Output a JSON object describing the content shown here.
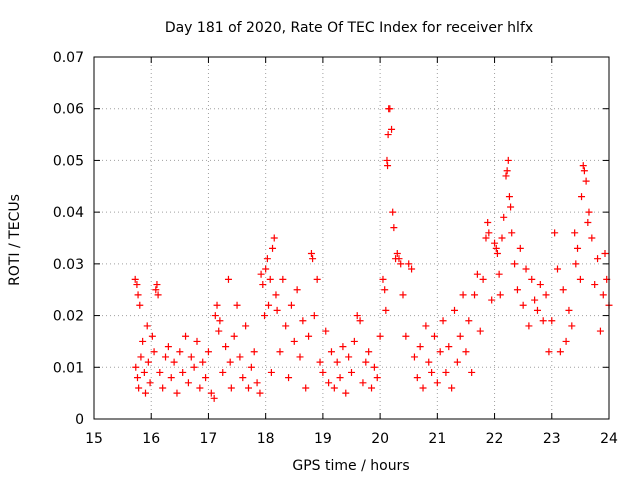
{
  "chart_data": {
    "type": "scatter",
    "title": "Day 181 of 2020, Rate Of TEC Index for receiver hlfx",
    "xlabel": "GPS time / hours",
    "ylabel": "ROTI / TECUs",
    "xlim": [
      15,
      24
    ],
    "ylim": [
      0,
      0.07
    ],
    "xticks": [
      15,
      16,
      17,
      18,
      19,
      20,
      21,
      22,
      23,
      24
    ],
    "yticks": [
      0,
      0.01,
      0.02,
      0.03,
      0.04,
      0.05,
      0.06,
      0.07
    ],
    "ytick_labels": [
      "0",
      "0.01",
      "0.02",
      "0.03",
      "0.04",
      "0.05",
      "0.06",
      "0.07"
    ],
    "grid": true,
    "marker": "+",
    "color": "#ff0000",
    "series": [
      {
        "name": "ROTI",
        "points": [
          [
            15.72,
            0.027
          ],
          [
            15.75,
            0.026
          ],
          [
            15.77,
            0.024
          ],
          [
            15.8,
            0.022
          ],
          [
            15.73,
            0.01
          ],
          [
            15.76,
            0.008
          ],
          [
            15.78,
            0.006
          ],
          [
            15.82,
            0.012
          ],
          [
            15.85,
            0.015
          ],
          [
            15.88,
            0.009
          ],
          [
            15.9,
            0.005
          ],
          [
            15.93,
            0.018
          ],
          [
            15.95,
            0.011
          ],
          [
            15.98,
            0.007
          ],
          [
            16.02,
            0.016
          ],
          [
            16.05,
            0.013
          ],
          [
            16.08,
            0.025
          ],
          [
            16.1,
            0.026
          ],
          [
            16.12,
            0.024
          ],
          [
            16.15,
            0.009
          ],
          [
            16.2,
            0.006
          ],
          [
            16.25,
            0.012
          ],
          [
            16.3,
            0.014
          ],
          [
            16.35,
            0.008
          ],
          [
            16.4,
            0.011
          ],
          [
            16.45,
            0.005
          ],
          [
            16.5,
            0.013
          ],
          [
            16.55,
            0.009
          ],
          [
            16.6,
            0.016
          ],
          [
            16.65,
            0.007
          ],
          [
            16.7,
            0.012
          ],
          [
            16.75,
            0.01
          ],
          [
            16.8,
            0.015
          ],
          [
            16.85,
            0.006
          ],
          [
            16.9,
            0.011
          ],
          [
            16.95,
            0.008
          ],
          [
            17.0,
            0.013
          ],
          [
            17.05,
            0.005
          ],
          [
            17.1,
            0.004
          ],
          [
            17.12,
            0.02
          ],
          [
            17.15,
            0.022
          ],
          [
            17.18,
            0.017
          ],
          [
            17.2,
            0.019
          ],
          [
            17.25,
            0.009
          ],
          [
            17.3,
            0.014
          ],
          [
            17.35,
            0.027
          ],
          [
            17.38,
            0.011
          ],
          [
            17.4,
            0.006
          ],
          [
            17.45,
            0.016
          ],
          [
            17.5,
            0.022
          ],
          [
            17.55,
            0.012
          ],
          [
            17.6,
            0.008
          ],
          [
            17.65,
            0.018
          ],
          [
            17.7,
            0.006
          ],
          [
            17.75,
            0.01
          ],
          [
            17.8,
            0.013
          ],
          [
            17.85,
            0.007
          ],
          [
            17.9,
            0.005
          ],
          [
            17.92,
            0.028
          ],
          [
            17.95,
            0.026
          ],
          [
            17.98,
            0.02
          ],
          [
            18.0,
            0.029
          ],
          [
            18.03,
            0.031
          ],
          [
            18.05,
            0.022
          ],
          [
            18.08,
            0.027
          ],
          [
            18.1,
            0.009
          ],
          [
            18.12,
            0.033
          ],
          [
            18.15,
            0.035
          ],
          [
            18.18,
            0.024
          ],
          [
            18.2,
            0.021
          ],
          [
            18.25,
            0.013
          ],
          [
            18.3,
            0.027
          ],
          [
            18.35,
            0.018
          ],
          [
            18.4,
            0.008
          ],
          [
            18.45,
            0.022
          ],
          [
            18.5,
            0.015
          ],
          [
            18.55,
            0.025
          ],
          [
            18.6,
            0.012
          ],
          [
            18.65,
            0.019
          ],
          [
            18.7,
            0.006
          ],
          [
            18.75,
            0.016
          ],
          [
            18.8,
            0.032
          ],
          [
            18.82,
            0.031
          ],
          [
            18.85,
            0.02
          ],
          [
            18.9,
            0.027
          ],
          [
            18.95,
            0.011
          ],
          [
            19.0,
            0.009
          ],
          [
            19.05,
            0.017
          ],
          [
            19.1,
            0.007
          ],
          [
            19.15,
            0.013
          ],
          [
            19.2,
            0.006
          ],
          [
            19.25,
            0.011
          ],
          [
            19.3,
            0.008
          ],
          [
            19.35,
            0.014
          ],
          [
            19.4,
            0.005
          ],
          [
            19.45,
            0.012
          ],
          [
            19.5,
            0.009
          ],
          [
            19.55,
            0.015
          ],
          [
            19.6,
            0.02
          ],
          [
            19.65,
            0.019
          ],
          [
            19.7,
            0.007
          ],
          [
            19.75,
            0.011
          ],
          [
            19.8,
            0.013
          ],
          [
            19.85,
            0.006
          ],
          [
            19.9,
            0.01
          ],
          [
            19.95,
            0.008
          ],
          [
            20.0,
            0.016
          ],
          [
            20.05,
            0.027
          ],
          [
            20.08,
            0.025
          ],
          [
            20.1,
            0.021
          ],
          [
            20.12,
            0.05
          ],
          [
            20.13,
            0.049
          ],
          [
            20.14,
            0.055
          ],
          [
            20.15,
            0.06
          ],
          [
            20.17,
            0.06
          ],
          [
            20.2,
            0.056
          ],
          [
            20.22,
            0.04
          ],
          [
            20.24,
            0.037
          ],
          [
            20.27,
            0.031
          ],
          [
            20.3,
            0.032
          ],
          [
            20.33,
            0.031
          ],
          [
            20.36,
            0.03
          ],
          [
            20.4,
            0.024
          ],
          [
            20.45,
            0.016
          ],
          [
            20.5,
            0.03
          ],
          [
            20.55,
            0.029
          ],
          [
            20.6,
            0.012
          ],
          [
            20.65,
            0.008
          ],
          [
            20.7,
            0.014
          ],
          [
            20.75,
            0.006
          ],
          [
            20.8,
            0.018
          ],
          [
            20.85,
            0.011
          ],
          [
            20.9,
            0.009
          ],
          [
            20.95,
            0.016
          ],
          [
            21.0,
            0.007
          ],
          [
            21.05,
            0.013
          ],
          [
            21.1,
            0.019
          ],
          [
            21.15,
            0.009
          ],
          [
            21.2,
            0.014
          ],
          [
            21.25,
            0.006
          ],
          [
            21.3,
            0.021
          ],
          [
            21.35,
            0.011
          ],
          [
            21.4,
            0.016
          ],
          [
            21.45,
            0.024
          ],
          [
            21.5,
            0.013
          ],
          [
            21.55,
            0.019
          ],
          [
            21.6,
            0.009
          ],
          [
            21.65,
            0.024
          ],
          [
            21.7,
            0.028
          ],
          [
            21.75,
            0.017
          ],
          [
            21.8,
            0.027
          ],
          [
            21.85,
            0.035
          ],
          [
            21.88,
            0.038
          ],
          [
            21.9,
            0.036
          ],
          [
            21.95,
            0.023
          ],
          [
            22.0,
            0.034
          ],
          [
            22.03,
            0.033
          ],
          [
            22.05,
            0.032
          ],
          [
            22.08,
            0.028
          ],
          [
            22.1,
            0.024
          ],
          [
            22.13,
            0.035
          ],
          [
            22.16,
            0.039
          ],
          [
            22.2,
            0.047
          ],
          [
            22.22,
            0.048
          ],
          [
            22.24,
            0.05
          ],
          [
            22.26,
            0.043
          ],
          [
            22.28,
            0.041
          ],
          [
            22.3,
            0.036
          ],
          [
            22.35,
            0.03
          ],
          [
            22.4,
            0.025
          ],
          [
            22.45,
            0.033
          ],
          [
            22.5,
            0.022
          ],
          [
            22.55,
            0.029
          ],
          [
            22.6,
            0.018
          ],
          [
            22.65,
            0.027
          ],
          [
            22.7,
            0.023
          ],
          [
            22.75,
            0.021
          ],
          [
            22.8,
            0.026
          ],
          [
            22.85,
            0.019
          ],
          [
            22.9,
            0.024
          ],
          [
            22.95,
            0.013
          ],
          [
            23.0,
            0.019
          ],
          [
            23.05,
            0.036
          ],
          [
            23.1,
            0.029
          ],
          [
            23.15,
            0.013
          ],
          [
            23.2,
            0.025
          ],
          [
            23.25,
            0.015
          ],
          [
            23.3,
            0.021
          ],
          [
            23.35,
            0.018
          ],
          [
            23.4,
            0.036
          ],
          [
            23.42,
            0.03
          ],
          [
            23.45,
            0.033
          ],
          [
            23.5,
            0.027
          ],
          [
            23.52,
            0.043
          ],
          [
            23.55,
            0.049
          ],
          [
            23.57,
            0.048
          ],
          [
            23.6,
            0.046
          ],
          [
            23.63,
            0.038
          ],
          [
            23.65,
            0.04
          ],
          [
            23.7,
            0.035
          ],
          [
            23.75,
            0.026
          ],
          [
            23.8,
            0.031
          ],
          [
            23.85,
            0.017
          ],
          [
            23.9,
            0.024
          ],
          [
            23.93,
            0.032
          ],
          [
            23.96,
            0.027
          ],
          [
            24.0,
            0.022
          ]
        ]
      }
    ]
  }
}
